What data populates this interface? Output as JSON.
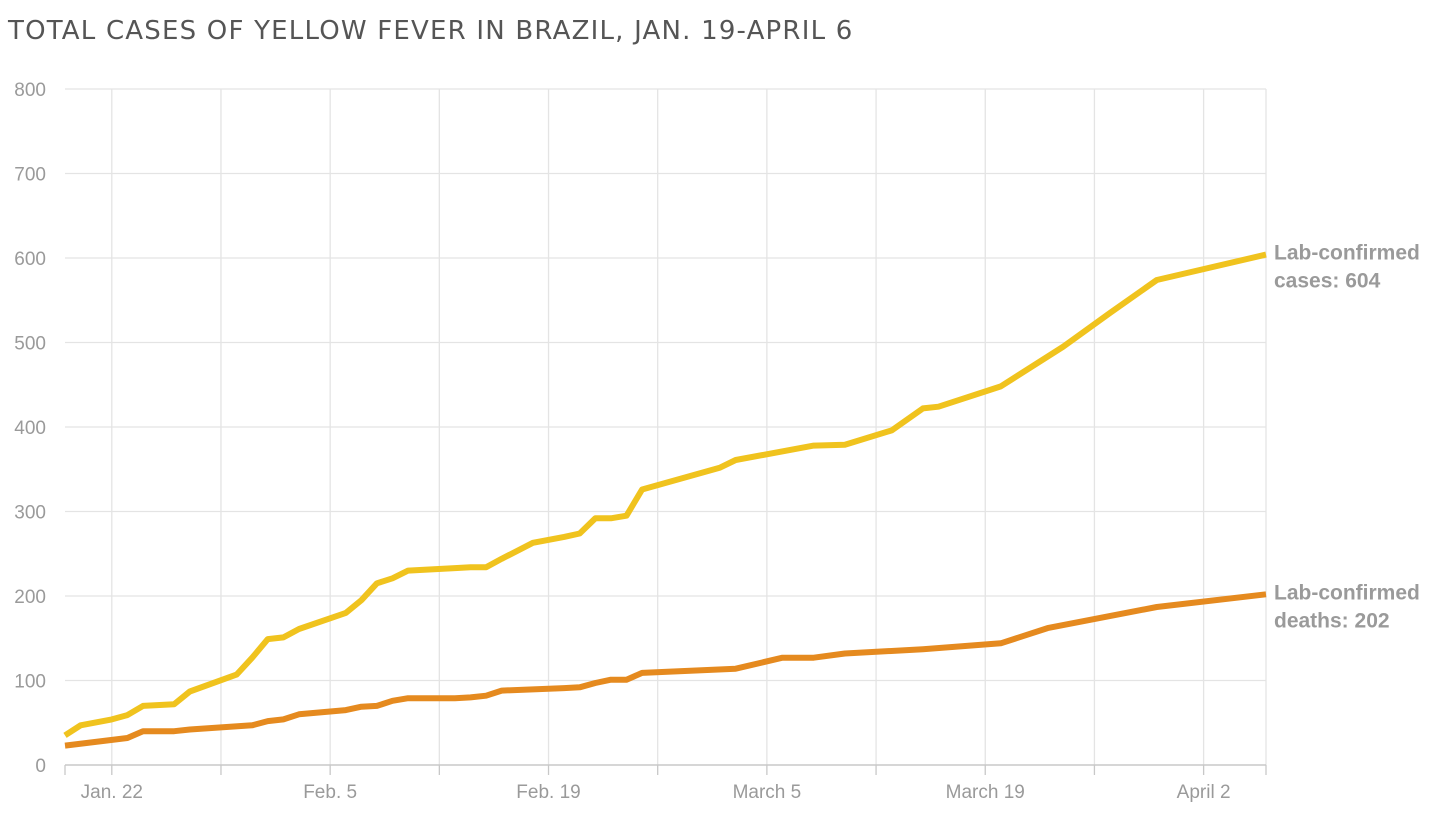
{
  "chart_data": {
    "type": "line",
    "title": "TOTAL CASES OF YELLOW FEVER IN BRAZIL, JAN. 19-APRIL 6",
    "xlabel": "",
    "ylabel": "",
    "ylim": [
      0,
      800
    ],
    "yticks": [
      "0",
      "100",
      "200",
      "300",
      "400",
      "500",
      "600",
      "700",
      "800"
    ],
    "xlim": [
      "2018-01-19",
      "2018-04-06"
    ],
    "xtick_labels": [
      {
        "date": "2018-01-22",
        "label": "Jan. 22"
      },
      {
        "date": "2018-02-05",
        "label": "Feb. 5"
      },
      {
        "date": "2018-02-19",
        "label": "Feb. 19"
      },
      {
        "date": "2018-03-05",
        "label": "March 5"
      },
      {
        "date": "2018-03-19",
        "label": "March 19"
      },
      {
        "date": "2018-04-02",
        "label": "April 2"
      }
    ],
    "grid": true,
    "series": [
      {
        "name": "Lab-confirmed cases: 604",
        "label_lines": [
          "Lab-confirmed",
          "cases: 604"
        ],
        "color": "#f0c31e",
        "points": [
          [
            "2018-01-19",
            35
          ],
          [
            "2018-01-20",
            47
          ],
          [
            "2018-01-22",
            54
          ],
          [
            "2018-01-23",
            59
          ],
          [
            "2018-01-24",
            70
          ],
          [
            "2018-01-26",
            72
          ],
          [
            "2018-01-27",
            87
          ],
          [
            "2018-01-30",
            107
          ],
          [
            "2018-01-31",
            127
          ],
          [
            "2018-02-01",
            149
          ],
          [
            "2018-02-02",
            151
          ],
          [
            "2018-02-03",
            161
          ],
          [
            "2018-02-06",
            180
          ],
          [
            "2018-02-07",
            195
          ],
          [
            "2018-02-08",
            215
          ],
          [
            "2018-02-09",
            221
          ],
          [
            "2018-02-10",
            230
          ],
          [
            "2018-02-13",
            233
          ],
          [
            "2018-02-14",
            234
          ],
          [
            "2018-02-15",
            234
          ],
          [
            "2018-02-16",
            244
          ],
          [
            "2018-02-18",
            263
          ],
          [
            "2018-02-20",
            270
          ],
          [
            "2018-02-21",
            274
          ],
          [
            "2018-02-22",
            292
          ],
          [
            "2018-02-23",
            292
          ],
          [
            "2018-02-24",
            295
          ],
          [
            "2018-02-25",
            326
          ],
          [
            "2018-03-02",
            352
          ],
          [
            "2018-03-03",
            361
          ],
          [
            "2018-03-08",
            378
          ],
          [
            "2018-03-10",
            379
          ],
          [
            "2018-03-13",
            396
          ],
          [
            "2018-03-15",
            422
          ],
          [
            "2018-03-16",
            424
          ],
          [
            "2018-03-20",
            448
          ],
          [
            "2018-03-24",
            495
          ],
          [
            "2018-03-27",
            535
          ],
          [
            "2018-03-30",
            574
          ],
          [
            "2018-04-06",
            604
          ]
        ]
      },
      {
        "name": "Lab-confirmed deaths: 202",
        "label_lines": [
          "Lab-confirmed",
          "deaths: 202"
        ],
        "color": "#e58a1f",
        "points": [
          [
            "2018-01-19",
            23
          ],
          [
            "2018-01-23",
            32
          ],
          [
            "2018-01-24",
            40
          ],
          [
            "2018-01-26",
            40
          ],
          [
            "2018-01-27",
            42
          ],
          [
            "2018-01-31",
            47
          ],
          [
            "2018-02-01",
            52
          ],
          [
            "2018-02-02",
            54
          ],
          [
            "2018-02-03",
            60
          ],
          [
            "2018-02-06",
            65
          ],
          [
            "2018-02-07",
            69
          ],
          [
            "2018-02-08",
            70
          ],
          [
            "2018-02-09",
            76
          ],
          [
            "2018-02-10",
            79
          ],
          [
            "2018-02-13",
            79
          ],
          [
            "2018-02-14",
            80
          ],
          [
            "2018-02-15",
            82
          ],
          [
            "2018-02-16",
            88
          ],
          [
            "2018-02-20",
            91
          ],
          [
            "2018-02-21",
            92
          ],
          [
            "2018-02-22",
            97
          ],
          [
            "2018-02-23",
            101
          ],
          [
            "2018-02-24",
            101
          ],
          [
            "2018-02-25",
            109
          ],
          [
            "2018-03-03",
            114
          ],
          [
            "2018-03-06",
            127
          ],
          [
            "2018-03-08",
            127
          ],
          [
            "2018-03-10",
            132
          ],
          [
            "2018-03-15",
            137
          ],
          [
            "2018-03-20",
            144
          ],
          [
            "2018-03-23",
            162
          ],
          [
            "2018-03-30",
            187
          ],
          [
            "2018-04-06",
            202
          ]
        ]
      }
    ]
  }
}
